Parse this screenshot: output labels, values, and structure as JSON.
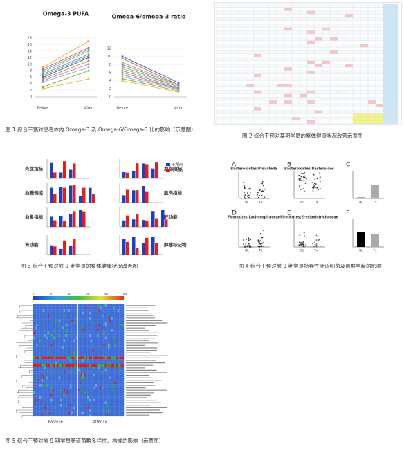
{
  "chart_data": [
    {
      "type": "line",
      "title": "Omega-3 PUFA",
      "categories": [
        "Before",
        "After"
      ],
      "ylim": [
        0,
        18
      ],
      "yticks": [
        0,
        2,
        4,
        6,
        8,
        10,
        12,
        14,
        16,
        18
      ],
      "series": [
        {
          "color": "#f0a030",
          "values": [
            9,
            17
          ]
        },
        {
          "color": "#e05050",
          "values": [
            8.5,
            15
          ]
        },
        {
          "color": "#50a0d0",
          "values": [
            8,
            14.5
          ]
        },
        {
          "color": "#80c050",
          "values": [
            7.5,
            14
          ]
        },
        {
          "color": "#a070c0",
          "values": [
            7,
            13
          ]
        },
        {
          "color": "#40b0a0",
          "values": [
            6.5,
            12.5
          ]
        },
        {
          "color": "#3060b0",
          "values": [
            6,
            12
          ]
        },
        {
          "color": "#c08040",
          "values": [
            5.5,
            11
          ]
        },
        {
          "color": "#d070a0",
          "values": [
            5,
            10
          ]
        },
        {
          "color": "#70b0e0",
          "values": [
            4.5,
            9
          ]
        },
        {
          "color": "#a0a040",
          "values": [
            3,
            8
          ]
        },
        {
          "color": "#e0c040",
          "values": [
            2.5,
            5.5
          ]
        }
      ]
    },
    {
      "type": "line",
      "title": "Omega-6/omega-3 ratio",
      "categories": [
        "Before",
        "After"
      ],
      "ylim": [
        0,
        12
      ],
      "yticks": [
        0,
        2,
        4,
        6,
        8,
        10,
        12
      ],
      "series": [
        {
          "color": "#3060b0",
          "values": [
            10,
            3.5
          ]
        },
        {
          "color": "#e05050",
          "values": [
            9.5,
            3
          ]
        },
        {
          "color": "#80c050",
          "values": [
            8.5,
            3
          ]
        },
        {
          "color": "#a070c0",
          "values": [
            8,
            2.8
          ]
        },
        {
          "color": "#40b0a0",
          "values": [
            7.5,
            2.5
          ]
        },
        {
          "color": "#f0a030",
          "values": [
            7,
            2.5
          ]
        },
        {
          "color": "#50a0d0",
          "values": [
            6.5,
            2.2
          ]
        },
        {
          "color": "#c08040",
          "values": [
            6,
            2
          ]
        },
        {
          "color": "#d070a0",
          "values": [
            5.5,
            2
          ]
        },
        {
          "color": "#70b0e0",
          "values": [
            5,
            1.8
          ]
        },
        {
          "color": "#a0a040",
          "values": [
            4.5,
            1.5
          ]
        },
        {
          "color": "#e0c040",
          "values": [
            4,
            1.2
          ]
        }
      ]
    }
  ],
  "figure3": {
    "panels": [
      "炎症指标",
      "血脂指标",
      "血糖调控",
      "肌肉指标",
      "血象指标",
      "肝功能",
      "肾功能",
      "肿瘤标记物"
    ],
    "legend": [
      "干预前",
      "干预后"
    ]
  },
  "figure4": {
    "letters": [
      "A",
      "B",
      "C",
      "D",
      "E",
      "F"
    ],
    "titles": [
      "Bacteroidetes;Prevotella",
      "Bacteroidetes;Bacteroides",
      "Firmicutes;Lachnospiraceae",
      "Firmicutes;Erysipelotrichaceae"
    ],
    "groups": [
      "BL",
      "Tx"
    ]
  },
  "figure5": {
    "colorbar": [
      "0",
      "20",
      "40",
      "60",
      "80",
      "100"
    ],
    "groups": [
      "Baseline",
      "After Tx"
    ]
  },
  "captions": [
    "图 1  综合干预对患者体内 Omega-3 及 Omega-6/Omega-3 比的影响（示意图）",
    "图 2  综合干预对某期学员的整体健康状况改善示意图",
    "图 3  综合干预对前 9 期学员的整体健康状况改善图",
    "图 4   综合干预对前 9 期学员特异性肠道细菌及菌群丰度的影响",
    "图 5   综合干预对前 9 期学员肠道菌群多样性、构成的影响（示意图）"
  ]
}
